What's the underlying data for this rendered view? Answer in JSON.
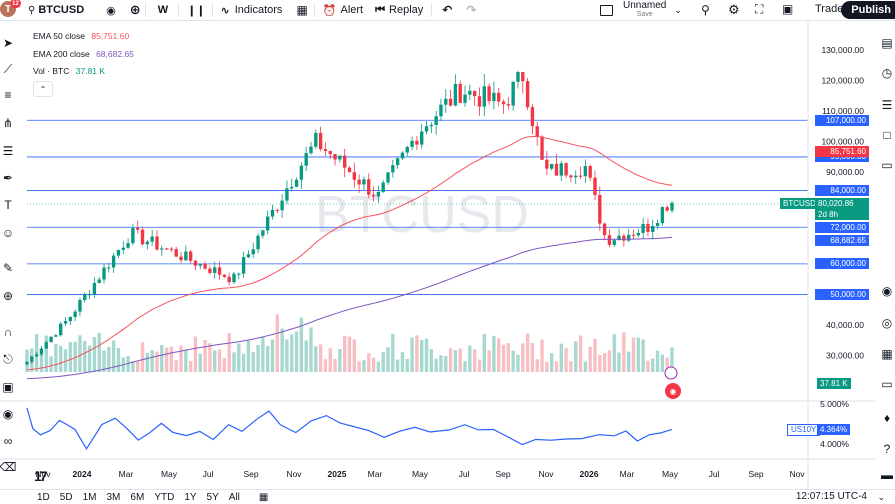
{
  "toolbar": {
    "avatar_letter": "T",
    "notification_count": "12",
    "symbol": "BTCUSD",
    "interval": "W",
    "indicators_label": "Indicators",
    "alert_label": "Alert",
    "replay_label": "Replay",
    "layout_name": "Unnamed",
    "layout_status": "Save",
    "trade_label": "Trade",
    "publish_label": "Publish"
  },
  "legend": {
    "ema50_label": "EMA 50 close",
    "ema50_value": "85,751.60",
    "ema200_label": "EMA 200 close",
    "ema200_value": "68,682.65",
    "vol_label": "Vol · BTC",
    "vol_value": "37.81 K"
  },
  "watermark": "BTCUSD",
  "price_axis": {
    "ticks": [
      "130,000.00",
      "120,000.00",
      "110,000.00",
      "100,000.00",
      "90,000.00",
      "40,000.00",
      "30,000.00"
    ],
    "tick_values": [
      130000,
      120000,
      110000,
      100000,
      90000,
      40000,
      30000
    ]
  },
  "horizontal_lines": [
    {
      "label": "107,000.00",
      "value": 107000
    },
    {
      "label": "95,000.00",
      "value": 95000
    },
    {
      "label": "84,000.00",
      "value": 84000
    },
    {
      "label": "72,000.00",
      "value": 72000
    },
    {
      "label": "60,000.00",
      "value": 60000
    },
    {
      "label": "50,000.00",
      "value": 50000
    }
  ],
  "price_tags": {
    "ema50": "85,751.60",
    "last_symbol": "BTCUSD",
    "last_price": "80,020.86",
    "countdown": "2d 8h",
    "ema200": "68,682.65",
    "volume": "37.81 K"
  },
  "lower_pane": {
    "symbol": "US10Y",
    "value": "4.364%",
    "ticks": [
      "5.000%",
      "4.000%"
    ]
  },
  "time_axis": [
    "Nov",
    "2024",
    "Mar",
    "May",
    "Jul",
    "Sep",
    "Nov",
    "2025",
    "Mar",
    "May",
    "Jul",
    "Sep",
    "Nov",
    "2026",
    "Mar",
    "May",
    "Jul",
    "Sep",
    "Nov"
  ],
  "timeframes": [
    "1D",
    "5D",
    "1M",
    "3M",
    "6M",
    "YTD",
    "1Y",
    "5Y",
    "All"
  ],
  "clock": "12:07:15 UTC-4",
  "colors": {
    "up": "#089981",
    "down": "#f23645",
    "ema50": "#f7525f",
    "ema200": "#7e57c2",
    "hline": "#2962ff",
    "us10y": "#2962ff"
  },
  "chart_data": {
    "type": "candlestick",
    "interval": "weekly",
    "x_range": [
      "2023-10",
      "2026-11"
    ],
    "y_range": [
      20000,
      140000
    ],
    "price_anchors": [
      {
        "t": "2023-10",
        "price": 28000
      },
      {
        "t": "2023-12",
        "price": 42000
      },
      {
        "t": "2024-03",
        "price": 70000
      },
      {
        "t": "2024-08",
        "price": 55000
      },
      {
        "t": "2024-11",
        "price": 90000
      },
      {
        "t": "2024-12",
        "price": 100000
      },
      {
        "t": "2025-03",
        "price": 82000
      },
      {
        "t": "2025-05",
        "price": 104000
      },
      {
        "t": "2025-07",
        "price": 117000
      },
      {
        "t": "2025-09",
        "price": 112000
      },
      {
        "t": "2025-10",
        "price": 122000
      },
      {
        "t": "2025-11",
        "price": 90000
      },
      {
        "t": "2026-01",
        "price": 92000
      },
      {
        "t": "2026-02",
        "price": 68000
      },
      {
        "t": "2026-04",
        "price": 72000
      },
      {
        "t": "2026-05",
        "price": 80020.86
      }
    ],
    "ema50_last": 85751.6,
    "ema200_last": 68682.65,
    "volume_last": "37.81 K",
    "us10y_range": [
      "4.000%",
      "5.000%"
    ],
    "us10y_last": "4.364%"
  }
}
